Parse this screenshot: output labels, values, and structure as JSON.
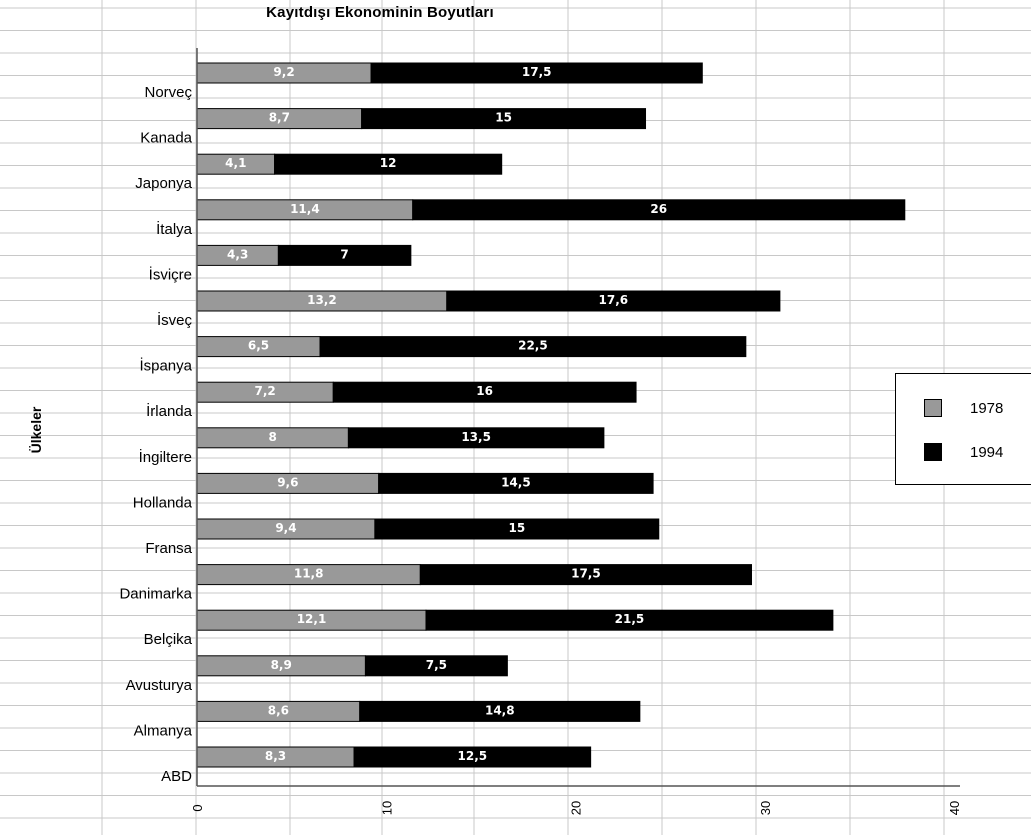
{
  "chart_data": {
    "type": "bar",
    "orientation": "horizontal",
    "stacked": true,
    "title": "Kayıtdışı Ekonominin Boyutları",
    "ylabel": "Ülkeler",
    "xlabel": "",
    "xlim": [
      0,
      40
    ],
    "x_ticks": [
      "0",
      "10",
      "20",
      "30",
      "40"
    ],
    "grid": true,
    "legend_position": "right",
    "categories": [
      "Norveç",
      "Kanada",
      "Japonya",
      "İtalya",
      "İsviçre",
      "İsveç",
      "İspanya",
      "İrlanda",
      "İngiltere",
      "Hollanda",
      "Fransa",
      "Danimarka",
      "Belçika",
      "Avusturya",
      "Almanya",
      "ABD"
    ],
    "series": [
      {
        "name": "1978",
        "color": "#999999",
        "values": [
          9.2,
          8.7,
          4.1,
          11.4,
          4.3,
          13.2,
          6.5,
          7.2,
          8,
          9.6,
          9.4,
          11.8,
          12.1,
          8.9,
          8.6,
          8.3
        ],
        "labels": [
          "9,2",
          "8,7",
          "4,1",
          "11,4",
          "4,3",
          "13,2",
          "6,5",
          "7,2",
          "8",
          "9,6",
          "9,4",
          "11,8",
          "12,1",
          "8,9",
          "8,6",
          "8,3"
        ]
      },
      {
        "name": "1994",
        "color": "#000000",
        "values": [
          17.5,
          15,
          12,
          26,
          7,
          17.6,
          22.5,
          16,
          13.5,
          14.5,
          15,
          17.5,
          21.5,
          7.5,
          14.8,
          12.5
        ],
        "labels": [
          "17,5",
          "15",
          "12",
          "26",
          "7",
          "17,6",
          "22,5",
          "16",
          "13,5",
          "14,5",
          "15",
          "17,5",
          "21,5",
          "7,5",
          "14,8",
          "12,5"
        ]
      }
    ]
  }
}
